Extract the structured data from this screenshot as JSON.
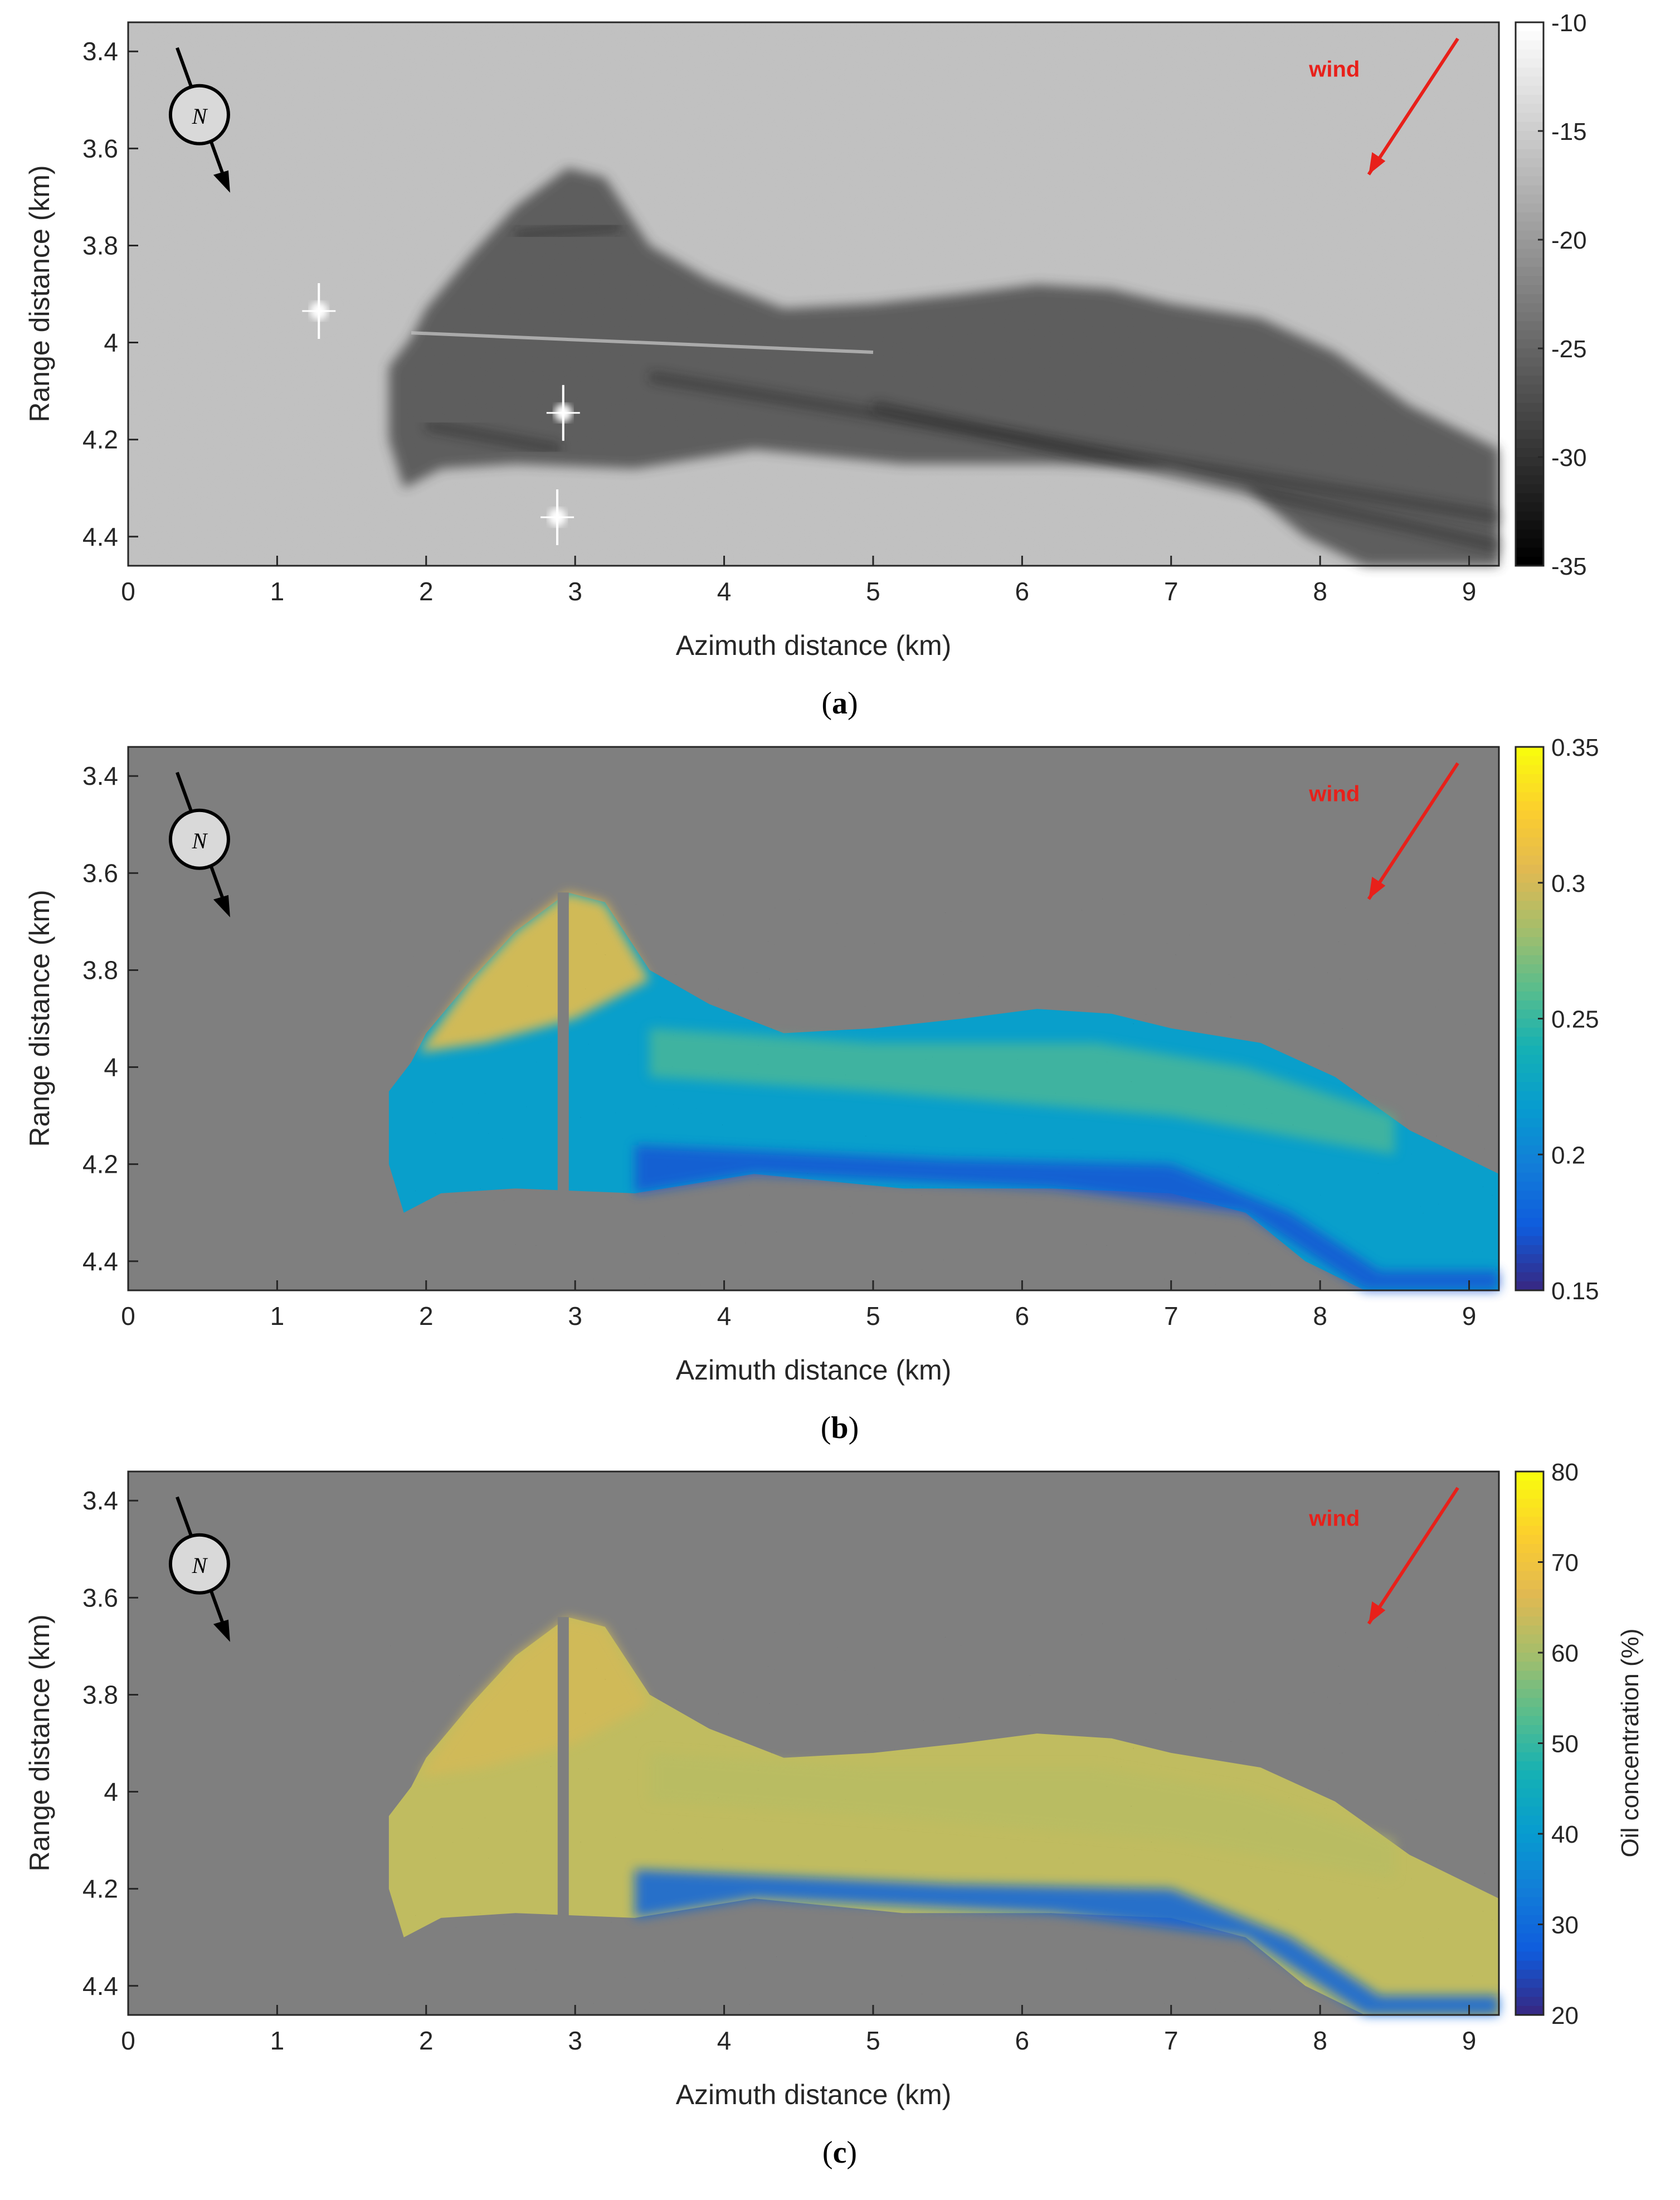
{
  "figure": {
    "panels": [
      {
        "caption_open": "(",
        "caption_letter": "a",
        "caption_close": ")",
        "xlabel": "Azimuth distance (km)",
        "ylabel": "Range distance (km)",
        "colorbar_label": "",
        "colorbar_ticks": [
          "-10",
          "-15",
          "-20",
          "-25",
          "-30",
          "-35"
        ],
        "colormap": "gray",
        "north_label": "N",
        "wind_label": "wind"
      },
      {
        "caption_open": "(",
        "caption_letter": "b",
        "caption_close": ")",
        "xlabel": "Azimuth distance (km)",
        "ylabel": "Range distance (km)",
        "colorbar_label": "",
        "colorbar_ticks": [
          "0.35",
          "0.3",
          "0.25",
          "0.2",
          "0.15"
        ],
        "colormap": "parula",
        "north_label": "N",
        "wind_label": "wind"
      },
      {
        "caption_open": "(",
        "caption_letter": "c",
        "caption_close": ")",
        "xlabel": "Azimuth distance (km)",
        "ylabel": "Range distance (km)",
        "colorbar_label": "Oil concentration (%)",
        "colorbar_ticks": [
          "80",
          "70",
          "60",
          "50",
          "40",
          "30",
          "20"
        ],
        "colormap": "parula",
        "north_label": "N",
        "wind_label": "wind"
      }
    ],
    "colors": {
      "wind_arrow": "#e8201a",
      "wind_text": "#e8201a",
      "masked_background": "#7f7f7f",
      "compass": "#000000"
    }
  },
  "chart_data": [
    {
      "type": "heatmap",
      "title": "",
      "xlabel": "Azimuth distance (km)",
      "ylabel": "Range distance (km)",
      "xlim": [
        0,
        9.2
      ],
      "ylim": [
        4.46,
        3.34
      ],
      "x_ticks": [
        "0",
        "1",
        "2",
        "3",
        "4",
        "5",
        "6",
        "7",
        "8",
        "9"
      ],
      "y_ticks": [
        "3.4",
        "3.6",
        "3.8",
        "4",
        "4.2",
        "4.4"
      ],
      "colorbar": {
        "range": [
          -35,
          -10
        ],
        "ticks": [
          "-10",
          "-15",
          "-20",
          "-25",
          "-30",
          "-35"
        ],
        "label": ""
      },
      "colormap": "gray",
      "features": {
        "slick_extent_azimuth_km": [
          1.75,
          9.2
        ],
        "slick_extent_range_km": [
          3.65,
          4.45
        ],
        "bright_targets": [
          {
            "azimuth_km": 1.28,
            "range_km": 3.935
          },
          {
            "azimuth_km": 2.92,
            "range_km": 4.145
          },
          {
            "azimuth_km": 2.88,
            "range_km": 4.36
          }
        ],
        "background_level": -16,
        "slick_level": -29
      }
    },
    {
      "type": "heatmap",
      "title": "",
      "xlabel": "Azimuth distance (km)",
      "ylabel": "Range distance (km)",
      "xlim": [
        0,
        9.2
      ],
      "ylim": [
        4.46,
        3.34
      ],
      "x_ticks": [
        "0",
        "1",
        "2",
        "3",
        "4",
        "5",
        "6",
        "7",
        "8",
        "9"
      ],
      "y_ticks": [
        "3.4",
        "3.6",
        "3.8",
        "4",
        "4.2",
        "4.4"
      ],
      "colorbar": {
        "range": [
          0.15,
          0.35
        ],
        "ticks": [
          "0.35",
          "0.3",
          "0.25",
          "0.2",
          "0.15"
        ],
        "label": ""
      },
      "colormap": "parula",
      "features": {
        "slick_extent_azimuth_km": [
          1.75,
          9.2
        ],
        "slick_extent_range_km": [
          3.63,
          4.46
        ],
        "upper_lobe_value": 0.31,
        "core_band_value": 0.22,
        "lower_edge_value": 0.17,
        "mask_strip_azimuth_km": 2.92
      }
    },
    {
      "type": "heatmap",
      "title": "",
      "xlabel": "Azimuth distance (km)",
      "ylabel": "Range distance (km)",
      "xlim": [
        0,
        9.2
      ],
      "ylim": [
        4.46,
        3.34
      ],
      "x_ticks": [
        "0",
        "1",
        "2",
        "3",
        "4",
        "5",
        "6",
        "7",
        "8",
        "9"
      ],
      "y_ticks": [
        "3.4",
        "3.6",
        "3.8",
        "4",
        "4.2",
        "4.4"
      ],
      "colorbar": {
        "range": [
          20,
          80
        ],
        "ticks": [
          "80",
          "70",
          "60",
          "50",
          "40",
          "30",
          "20"
        ],
        "label": "Oil concentration (%)"
      },
      "colormap": "parula",
      "features": {
        "slick_extent_azimuth_km": [
          1.75,
          9.2
        ],
        "slick_extent_range_km": [
          3.63,
          4.46
        ],
        "upper_lobe_value": 65,
        "core_band_value": 63,
        "edge_value": 28,
        "mask_strip_azimuth_km": 2.92
      }
    }
  ]
}
